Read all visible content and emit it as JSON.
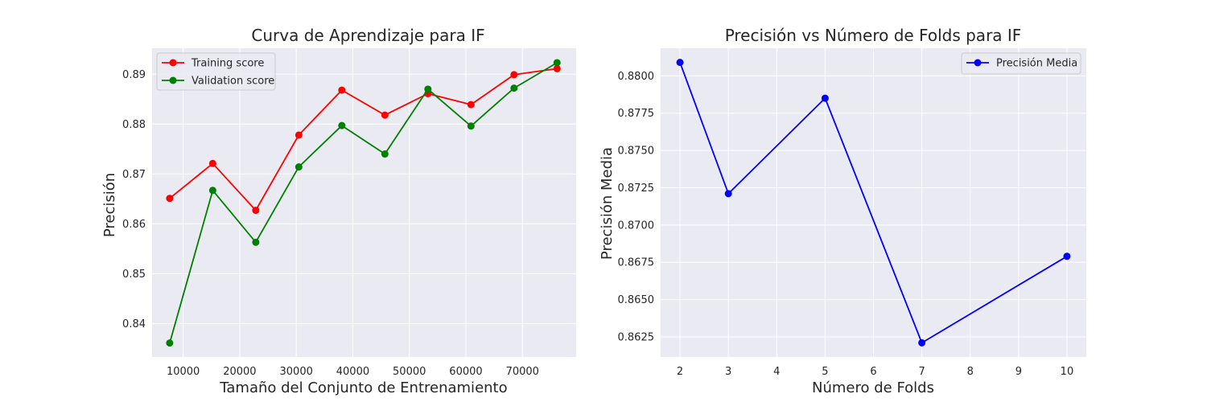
{
  "chart_data": [
    {
      "type": "line",
      "title": "Curva de Aprendizaje para IF",
      "xlabel": "Tamaño del Conjunto de Entrenamiento",
      "ylabel": "Precisión",
      "xlim": [
        4500,
        79500
      ],
      "ylim": [
        0.8333,
        0.8952
      ],
      "xticks": [
        10000,
        20000,
        30000,
        40000,
        50000,
        60000,
        70000
      ],
      "xtick_labels": [
        "10000",
        "20000",
        "30000",
        "40000",
        "50000",
        "60000",
        "70000"
      ],
      "yticks": [
        0.84,
        0.85,
        0.86,
        0.87,
        0.88,
        0.89
      ],
      "ytick_labels": [
        "0.84",
        "0.85",
        "0.86",
        "0.87",
        "0.88",
        "0.89"
      ],
      "grid": true,
      "legend_position": "top-left",
      "x": [
        7612,
        15225,
        22837,
        30450,
        38062,
        45675,
        53287,
        60900,
        68512,
        76125
      ],
      "series": [
        {
          "name": "Training score",
          "color": "#ff0000",
          "values": [
            0.8651,
            0.8721,
            0.8627,
            0.8778,
            0.8868,
            0.8818,
            0.8861,
            0.8839,
            0.8899,
            0.8911
          ]
        },
        {
          "name": "Validation score",
          "color": "#008000",
          "values": [
            0.8361,
            0.8667,
            0.8563,
            0.8714,
            0.8797,
            0.874,
            0.887,
            0.8796,
            0.8872,
            0.8923
          ]
        }
      ]
    },
    {
      "type": "line",
      "title": "Precisión vs Número de Folds para IF",
      "xlabel": "Número de Folds",
      "ylabel": "Precisión Media",
      "xlim": [
        1.6,
        10.4
      ],
      "ylim": [
        0.86115,
        0.88185
      ],
      "xticks": [
        2,
        3,
        4,
        5,
        6,
        7,
        8,
        9,
        10
      ],
      "xtick_labels": [
        "2",
        "3",
        "4",
        "5",
        "6",
        "7",
        "8",
        "9",
        "10"
      ],
      "yticks": [
        0.8625,
        0.865,
        0.8675,
        0.87,
        0.8725,
        0.875,
        0.8775,
        0.88
      ],
      "ytick_labels": [
        "0.8625",
        "0.8650",
        "0.8675",
        "0.8700",
        "0.8725",
        "0.8750",
        "0.8775",
        "0.8800"
      ],
      "grid": true,
      "legend_position": "top-right",
      "x": [
        2,
        3,
        5,
        7,
        10
      ],
      "series": [
        {
          "name": "Precisión Media",
          "color": "#0000ff",
          "values": [
            0.8809,
            0.8721,
            0.8785,
            0.8621,
            0.8679
          ]
        }
      ]
    }
  ]
}
